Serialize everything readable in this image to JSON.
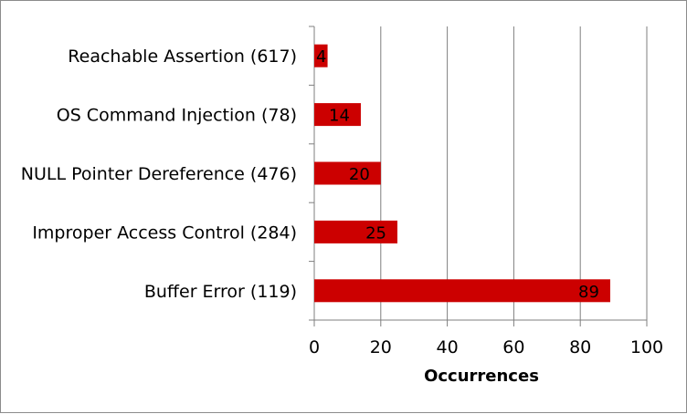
{
  "chart_data": {
    "type": "bar",
    "orientation": "horizontal",
    "categories": [
      "Reachable Assertion (617)",
      "OS Command Injection (78)",
      "NULL Pointer Dereference (476)",
      "Improper Access Control (284)",
      "Buffer Error (119)"
    ],
    "values": [
      4,
      14,
      20,
      25,
      89
    ],
    "data_labels": [
      "4",
      "14",
      "20",
      "25",
      "89"
    ],
    "xlabel": "Occurrences",
    "ylabel": "",
    "xlim": [
      0,
      100
    ],
    "x_ticks": [
      0,
      20,
      40,
      60,
      80,
      100
    ],
    "x_tick_labels": [
      "0",
      "20",
      "40",
      "60",
      "80",
      "100"
    ],
    "grid": "vertical",
    "legend": "none",
    "colors": {
      "bar": "#cc0000",
      "grid": "#7f7f7f",
      "axis": "#7f7f7f",
      "border": "#8c8c8c"
    }
  }
}
